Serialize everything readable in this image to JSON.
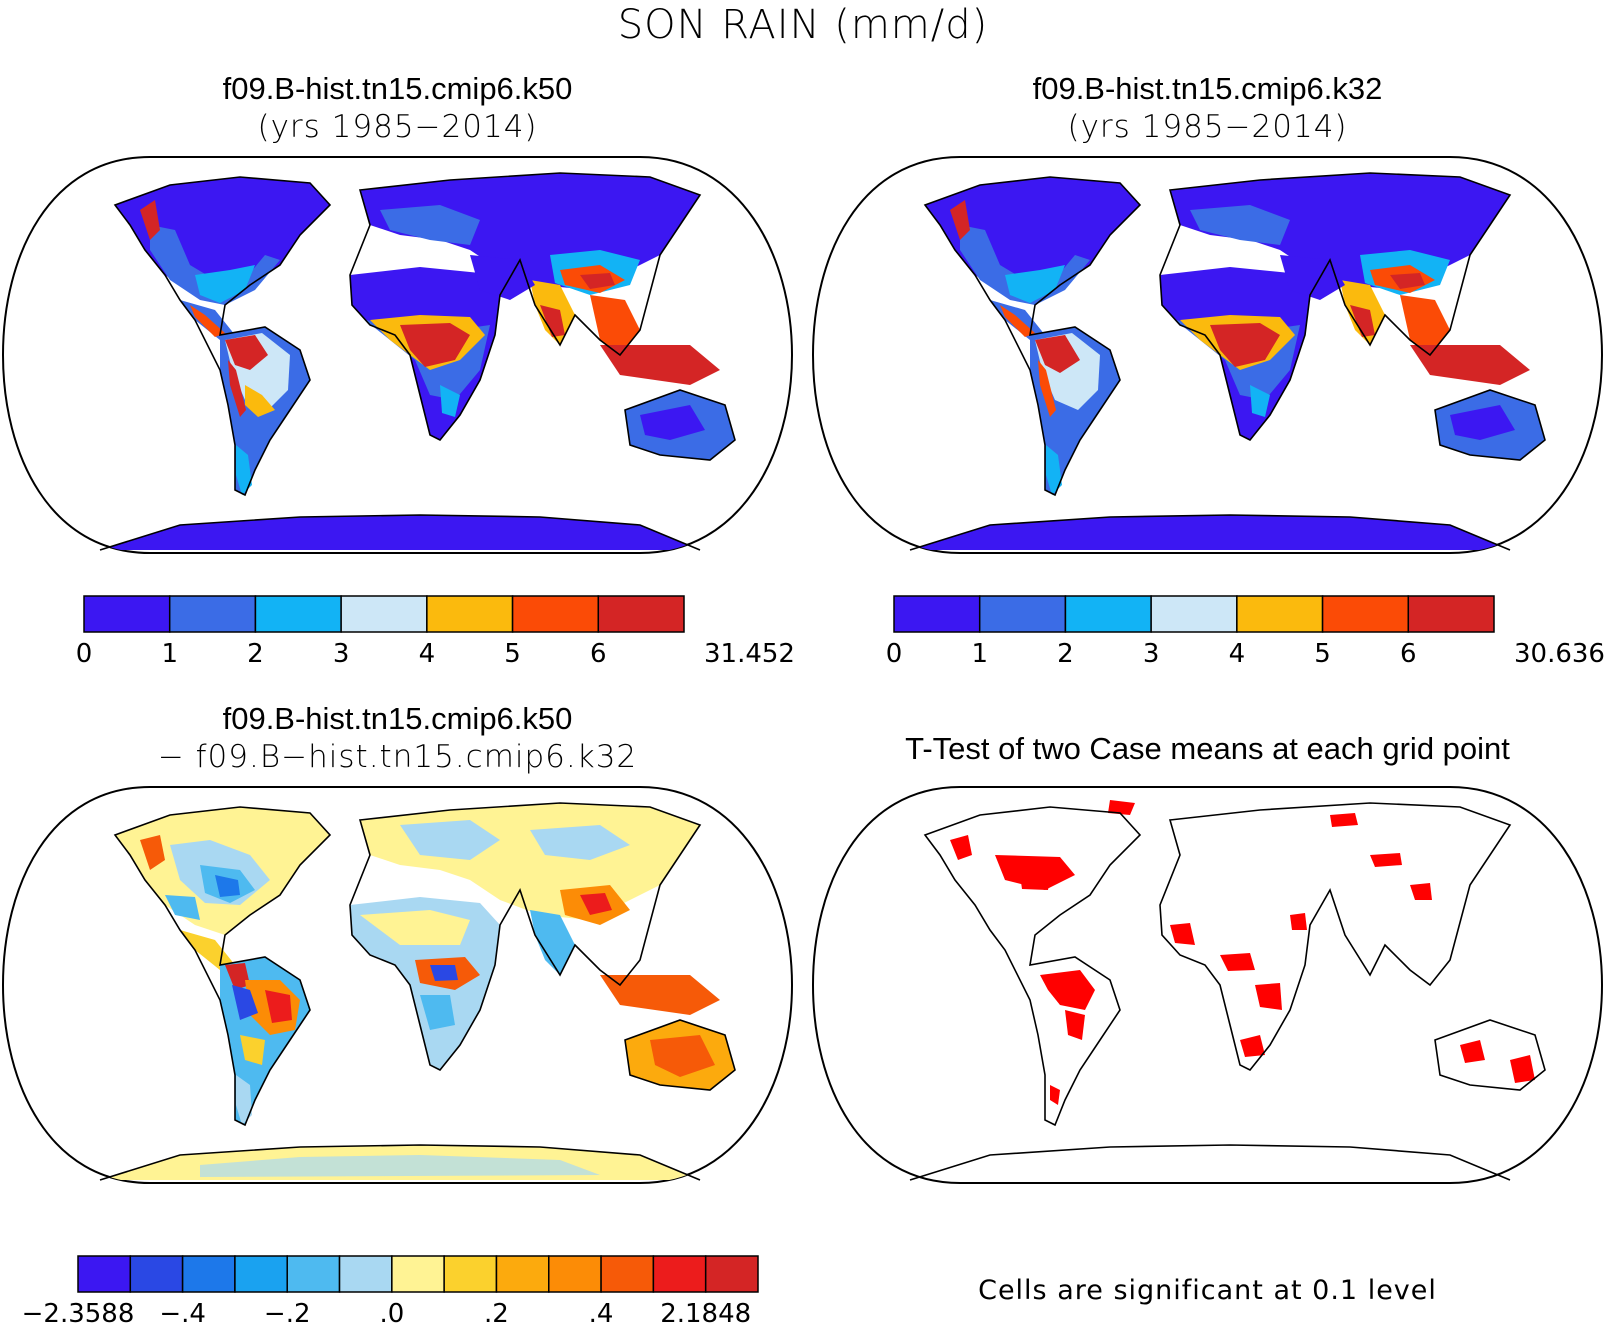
{
  "figure": {
    "title": "SON RAIN (mm/d)"
  },
  "panels": {
    "top_left": {
      "case": "f09.B-hist.tn15.cmip6.k50",
      "years": "(yrs 1985−2014)",
      "colorbar": {
        "labels": [
          "0",
          "1",
          "2",
          "3",
          "4",
          "5",
          "6",
          "31.452"
        ],
        "colors": [
          "#3c17f2",
          "#3b6ce6",
          "#12b3f5",
          "#cde7f7",
          "#fbba0d",
          "#fb4b06",
          "#d42525"
        ]
      }
    },
    "top_right": {
      "case": "f09.B-hist.tn15.cmip6.k32",
      "years": "(yrs 1985−2014)",
      "colorbar": {
        "labels": [
          "0",
          "1",
          "2",
          "3",
          "4",
          "5",
          "6",
          "30.636"
        ],
        "colors": [
          "#3c17f2",
          "#3b6ce6",
          "#12b3f5",
          "#cde7f7",
          "#fbba0d",
          "#fb4b06",
          "#d42525"
        ]
      }
    },
    "bottom_left": {
      "case": "f09.B-hist.tn15.cmip6.k50",
      "minus_case": "− f09.B−hist.tn15.cmip6.k32",
      "colorbar": {
        "labels": [
          "−2.3588",
          "−.4",
          "−.2",
          ".0",
          ".2",
          ".4",
          "2.1848"
        ],
        "colors": [
          "#3c17f2",
          "#2a48e4",
          "#1d78ea",
          "#1aa2f0",
          "#4ebaf0",
          "#a9d8f2",
          "#fff394",
          "#fbd12d",
          "#fcaa0d",
          "#fc8c06",
          "#f65a08",
          "#ec1c1c",
          "#d42525"
        ]
      }
    },
    "bottom_right": {
      "title": "T-Test of two Case means at each grid point",
      "note": "Cells are significant at 0.1 level",
      "significant_color": "#ff0000"
    }
  },
  "chart_data": [
    {
      "type": "heatmap",
      "title": "f09.B-hist.tn15.cmip6.k50 (yrs 1985–2014)",
      "projection": "Robinson",
      "variable": "SON RAIN (mm/d)",
      "levels": [
        0,
        1,
        2,
        3,
        4,
        5,
        6,
        31.452
      ]
    },
    {
      "type": "heatmap",
      "title": "f09.B-hist.tn15.cmip6.k32 (yrs 1985–2014)",
      "projection": "Robinson",
      "variable": "SON RAIN (mm/d)",
      "levels": [
        0,
        1,
        2,
        3,
        4,
        5,
        6,
        30.636
      ]
    },
    {
      "type": "heatmap",
      "title": "f09.B-hist.tn15.cmip6.k50 − f09.B−hist.tn15.cmip6.k32",
      "projection": "Robinson",
      "variable": "SON RAIN (mm/d) difference",
      "levels": [
        -2.3588,
        -0.5,
        -0.4,
        -0.3,
        -0.2,
        -0.1,
        0.0,
        0.1,
        0.2,
        0.3,
        0.4,
        0.5,
        2.1848
      ],
      "labeled_levels": [
        "−2.3588",
        "−.4",
        "−.2",
        ".0",
        ".2",
        ".4",
        "2.1848"
      ]
    },
    {
      "type": "heatmap",
      "title": "T-Test of two Case means at each grid point",
      "projection": "Robinson",
      "significance_level": 0.1
    }
  ]
}
